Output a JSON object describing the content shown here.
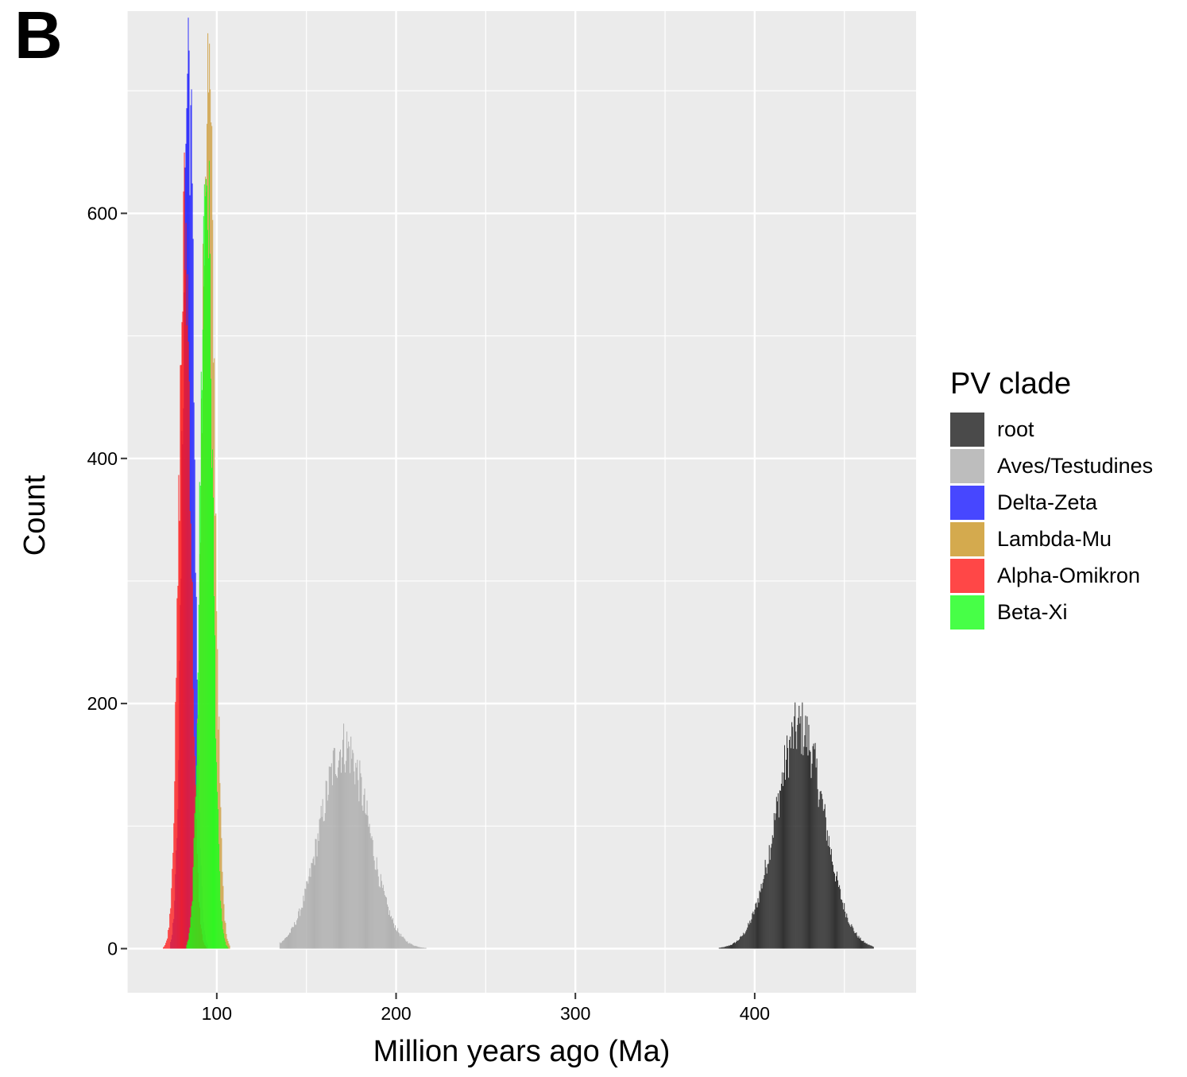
{
  "panel_label": "B",
  "chart_data": {
    "type": "bar",
    "subtype": "histogram",
    "xlabel": "Million years ago (Ma)",
    "ylabel": "Count",
    "xlim": [
      50,
      490
    ],
    "ylim": [
      -36,
      765
    ],
    "x_ticks": [
      100,
      200,
      300,
      400
    ],
    "y_ticks": [
      0,
      200,
      400,
      600
    ],
    "grid": true,
    "background": "#ebebeb",
    "legend": {
      "title": "PV clade",
      "position": "right"
    },
    "series": [
      {
        "name": "root",
        "color": "#1a1a1a",
        "legend_color": "#4a4a4a",
        "mean": 425,
        "sd": 13.5,
        "peak": 180,
        "range": [
          380,
          466
        ]
      },
      {
        "name": "Aves/Testudines",
        "color": "#aaaaaa",
        "legend_color": "#bdbdbd",
        "mean": 171,
        "sd": 13.5,
        "peak": 165,
        "range": [
          135,
          225
        ]
      },
      {
        "name": "Delta-Zeta",
        "color": "#1a1aff",
        "legend_color": "#4747ff",
        "mean": 84,
        "sd": 3.2,
        "peak": 730,
        "range": [
          74,
          95
        ]
      },
      {
        "name": "Lambda-Mu",
        "color": "#cf9e3e",
        "legend_color": "#d4aa4e",
        "mean": 95,
        "sd": 3.6,
        "peak": 705,
        "range": [
          84,
          107
        ]
      },
      {
        "name": "Alpha-Omikron",
        "color": "#ff1a1a",
        "legend_color": "#ff4747",
        "mean": 82,
        "sd": 3.4,
        "peak": 585,
        "range": [
          70,
          94
        ]
      },
      {
        "name": "Beta-Xi",
        "color": "#1aff1a",
        "legend_color": "#47ff47",
        "mean": 94,
        "sd": 3.4,
        "peak": 640,
        "range": [
          83,
          106
        ]
      }
    ]
  }
}
